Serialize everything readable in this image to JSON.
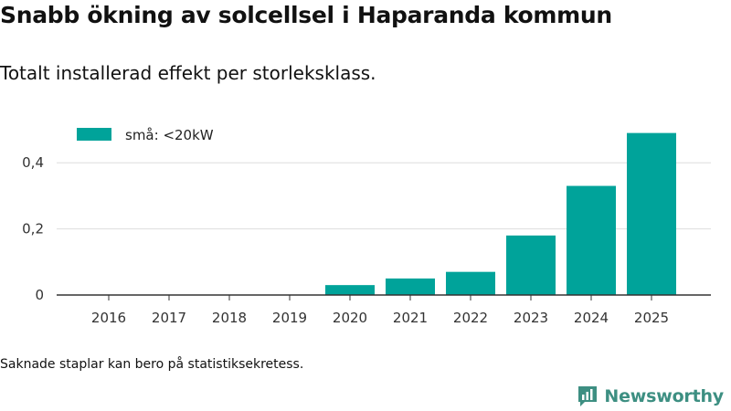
{
  "title": "Snabb ökning av solcellsel i Haparanda kommun",
  "subtitle": "Totalt installerad effekt per storleksklass.",
  "footnote": "Saknade staplar kan bero på statistiksekretess.",
  "brand": {
    "name": "Newsworthy",
    "icon": "newsworthy-logo-icon",
    "color": "#3d8f82"
  },
  "colors": {
    "bar": "#00a39a",
    "grid": "#dddddd",
    "axis": "#333333"
  },
  "chart_data": {
    "type": "bar",
    "title": "Snabb ökning av solcellsel i Haparanda kommun",
    "subtitle": "Totalt installerad effekt per storleksklass.",
    "xlabel": "",
    "ylabel": "",
    "categories": [
      "2016",
      "2017",
      "2018",
      "2019",
      "2020",
      "2021",
      "2022",
      "2023",
      "2024",
      "2025"
    ],
    "series": [
      {
        "name": "små: <20kW",
        "values": [
          0,
          0,
          0,
          0,
          0.03,
          0.05,
          0.07,
          0.18,
          0.33,
          0.49
        ]
      }
    ],
    "ylim": [
      0,
      0.5
    ],
    "yticks": [
      0,
      0.2,
      0.4
    ],
    "ytick_labels": [
      "0",
      "0,2",
      "0,4"
    ],
    "grid": true,
    "legend_position": "top-left"
  }
}
